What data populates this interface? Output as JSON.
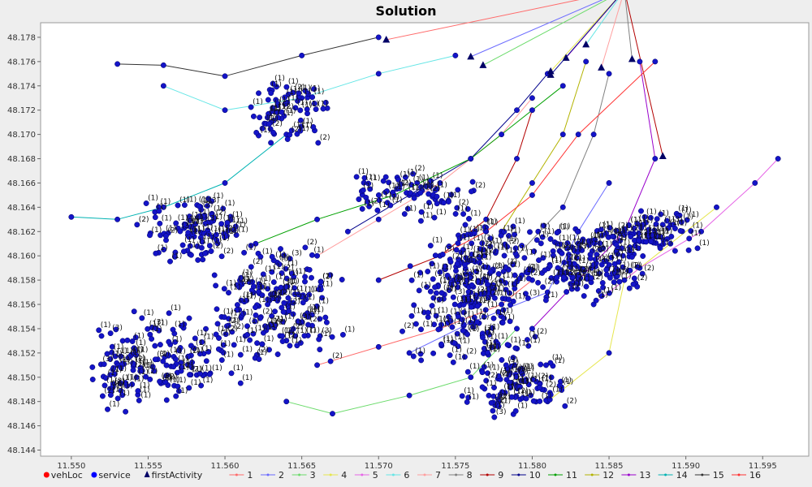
{
  "chart_data": {
    "type": "scatter",
    "title": "Solution",
    "xlabel": "",
    "ylabel": "",
    "xlim": [
      11.548,
      11.598
    ],
    "ylim": [
      48.1435,
      48.1792
    ],
    "x_ticks": [
      "11.550",
      "11.555",
      "11.560",
      "11.565",
      "11.570",
      "11.575",
      "11.580",
      "11.585",
      "11.590",
      "11.595"
    ],
    "y_ticks": [
      "48.144",
      "48.146",
      "48.148",
      "48.150",
      "48.152",
      "48.154",
      "48.156",
      "48.158",
      "48.160",
      "48.162",
      "48.164",
      "48.166",
      "48.168",
      "48.170",
      "48.172",
      "48.174",
      "48.176",
      "48.178"
    ],
    "grid": false,
    "legend_position": "bottom",
    "legend": [
      {
        "label": "vehLoc",
        "marker": "dot",
        "color": "#ff0000"
      },
      {
        "label": "service",
        "marker": "dot",
        "color": "#0000ff"
      },
      {
        "label": "firstActivity",
        "marker": "triangle",
        "color": "#000066"
      },
      {
        "label": "1",
        "marker": "line",
        "color": "#ff6b6b"
      },
      {
        "label": "2",
        "marker": "line",
        "color": "#6b6bff"
      },
      {
        "label": "3",
        "marker": "line",
        "color": "#6bdb6b"
      },
      {
        "label": "4",
        "marker": "line",
        "color": "#e6e64d"
      },
      {
        "label": "5",
        "marker": "line",
        "color": "#e666e6"
      },
      {
        "label": "6",
        "marker": "line",
        "color": "#66e6e6"
      },
      {
        "label": "7",
        "marker": "line",
        "color": "#ff9f9f"
      },
      {
        "label": "8",
        "marker": "line",
        "color": "#808080"
      },
      {
        "label": "9",
        "marker": "line",
        "color": "#b30000"
      },
      {
        "label": "10",
        "marker": "line",
        "color": "#00008b"
      },
      {
        "label": "11",
        "marker": "line",
        "color": "#00a000"
      },
      {
        "label": "12",
        "marker": "line",
        "color": "#b3b300"
      },
      {
        "label": "13",
        "marker": "line",
        "color": "#9900cc"
      },
      {
        "label": "14",
        "marker": "line",
        "color": "#00b3b3"
      },
      {
        "label": "15",
        "marker": "line",
        "color": "#333333"
      },
      {
        "label": "16",
        "marker": "line",
        "color": "#ff3333"
      }
    ],
    "first_activity_points": [
      [
        11.5705,
        48.1778
      ],
      [
        11.576,
        48.1764
      ],
      [
        11.5768,
        48.1757
      ],
      [
        11.5812,
        48.1752
      ],
      [
        11.5822,
        48.1763
      ],
      [
        11.5835,
        48.1774
      ],
      [
        11.5845,
        48.1755
      ],
      [
        11.5865,
        48.1762
      ],
      [
        11.5885,
        48.1682
      ],
      [
        11.5812,
        48.1749
      ]
    ],
    "series": [
      {
        "name": "1",
        "points": [
          [
            11.566,
            48.151
          ],
          [
            11.57,
            48.1525
          ],
          [
            11.574,
            48.154
          ],
          [
            11.578,
            48.156
          ],
          [
            11.58,
            48.158
          ]
        ]
      },
      {
        "name": "2",
        "points": [
          [
            11.572,
            48.152
          ],
          [
            11.576,
            48.1545
          ],
          [
            11.581,
            48.157
          ],
          [
            11.583,
            48.162
          ],
          [
            11.585,
            48.166
          ]
        ]
      },
      {
        "name": "3",
        "points": [
          [
            11.564,
            48.148
          ],
          [
            11.567,
            48.147
          ],
          [
            11.572,
            48.1485
          ],
          [
            11.576,
            48.15
          ],
          [
            11.579,
            48.154
          ]
        ]
      },
      {
        "name": "4",
        "points": [
          [
            11.581,
            48.148
          ],
          [
            11.585,
            48.152
          ],
          [
            11.586,
            48.158
          ],
          [
            11.589,
            48.161
          ],
          [
            11.592,
            48.164
          ]
        ]
      },
      {
        "name": "5",
        "points": [
          [
            11.584,
            48.156
          ],
          [
            11.587,
            48.159
          ],
          [
            11.591,
            48.162
          ],
          [
            11.5945,
            48.166
          ],
          [
            11.596,
            48.168
          ]
        ]
      },
      {
        "name": "6",
        "points": [
          [
            11.556,
            48.174
          ],
          [
            11.56,
            48.172
          ],
          [
            11.565,
            48.173
          ],
          [
            11.57,
            48.175
          ],
          [
            11.575,
            48.1765
          ]
        ]
      },
      {
        "name": "7",
        "points": [
          [
            11.566,
            48.16
          ],
          [
            11.57,
            48.163
          ],
          [
            11.574,
            48.166
          ],
          [
            11.578,
            48.17
          ],
          [
            11.58,
            48.173
          ]
        ]
      },
      {
        "name": "8",
        "points": [
          [
            11.576,
            48.156
          ],
          [
            11.579,
            48.16
          ],
          [
            11.582,
            48.164
          ],
          [
            11.584,
            48.17
          ],
          [
            11.585,
            48.175
          ]
        ]
      },
      {
        "name": "9",
        "points": [
          [
            11.57,
            48.158
          ],
          [
            11.574,
            48.16
          ],
          [
            11.577,
            48.163
          ],
          [
            11.579,
            48.168
          ],
          [
            11.58,
            48.172
          ]
        ]
      },
      {
        "name": "10",
        "points": [
          [
            11.568,
            48.162
          ],
          [
            11.572,
            48.165
          ],
          [
            11.576,
            48.168
          ],
          [
            11.579,
            48.172
          ],
          [
            11.581,
            48.175
          ]
        ]
      },
      {
        "name": "11",
        "points": [
          [
            11.562,
            48.161
          ],
          [
            11.566,
            48.163
          ],
          [
            11.571,
            48.165
          ],
          [
            11.576,
            48.168
          ],
          [
            11.582,
            48.174
          ]
        ]
      },
      {
        "name": "12",
        "points": [
          [
            11.578,
            48.162
          ],
          [
            11.58,
            48.166
          ],
          [
            11.582,
            48.17
          ],
          [
            11.5835,
            48.176
          ]
        ]
      },
      {
        "name": "13",
        "points": [
          [
            11.58,
            48.154
          ],
          [
            11.583,
            48.158
          ],
          [
            11.586,
            48.162
          ],
          [
            11.588,
            48.168
          ],
          [
            11.587,
            48.176
          ]
        ]
      },
      {
        "name": "14",
        "points": [
          [
            11.55,
            48.1632
          ],
          [
            11.553,
            48.163
          ],
          [
            11.556,
            48.164
          ],
          [
            11.56,
            48.166
          ],
          [
            11.564,
            48.17
          ]
        ]
      },
      {
        "name": "15",
        "points": [
          [
            11.553,
            48.1758
          ],
          [
            11.556,
            48.1757
          ],
          [
            11.56,
            48.1748
          ],
          [
            11.565,
            48.1765
          ],
          [
            11.57,
            48.178
          ]
        ]
      },
      {
        "name": "16",
        "points": [
          [
            11.574,
            48.16
          ],
          [
            11.577,
            48.162
          ],
          [
            11.58,
            48.165
          ],
          [
            11.583,
            48.17
          ],
          [
            11.588,
            48.176
          ]
        ]
      }
    ],
    "point_label_text": [
      "(1)",
      "(2)",
      "(3)"
    ]
  }
}
